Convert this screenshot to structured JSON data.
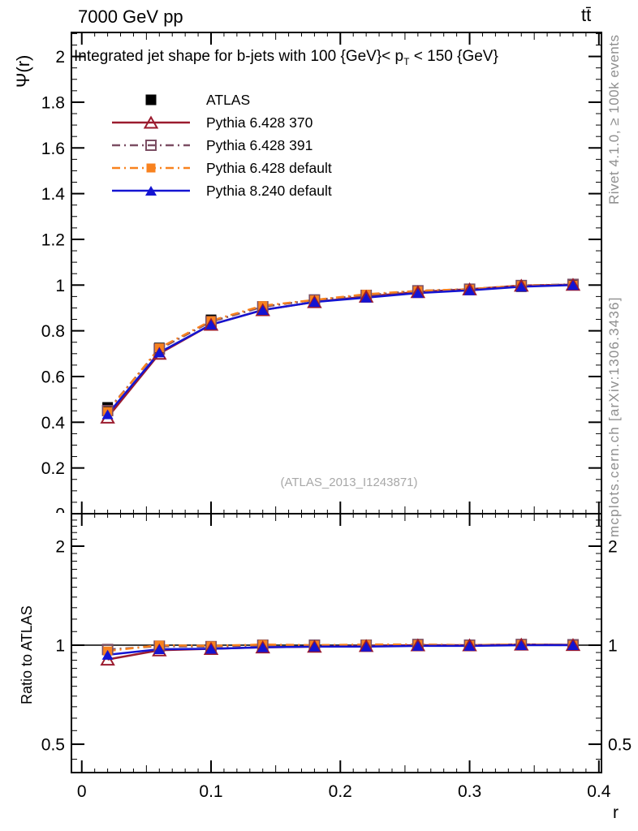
{
  "labels": {
    "header_left": "7000 GeV pp",
    "header_right": "tt̄",
    "title_pre": "Integrated jet shape for b-jets with 100 {GeV}< p",
    "title_sub": "T",
    "title_post": " < 150 {GeV}",
    "watermark": "(ATLAS_2013_I1243871)",
    "rivet": "Rivet 4.1.0, ≥ 100k events",
    "mcplots": "mcplots.cern.ch [arXiv:1306.3436]",
    "ylabel_main": "Ψ(r)",
    "ylabel_ratio": "Ratio to ATLAS",
    "xlabel": "r"
  },
  "chart_data": [
    {
      "type": "line",
      "panel": "main",
      "title": "Integrated jet shape for b-jets with 100 {GeV}< p_T < 150 {GeV}",
      "xlabel": "r",
      "ylabel": "Ψ(r)",
      "xlim": [
        -0.008,
        0.402
      ],
      "ylim": [
        0,
        2.105
      ],
      "yscale": "linear",
      "grid": false,
      "legend_position": "top-left",
      "xticks": [
        0,
        0.1,
        0.2,
        0.3,
        0.4
      ],
      "yticks": [
        0,
        0.2,
        0.4,
        0.6,
        0.8,
        1.0,
        1.2,
        1.4,
        1.6,
        1.8,
        2.0
      ],
      "x": [
        0.02,
        0.06,
        0.1,
        0.14,
        0.18,
        0.22,
        0.26,
        0.3,
        0.34,
        0.38
      ],
      "series": [
        {
          "name": "ATLAS",
          "color": "#000000",
          "marker": "square-filled",
          "line": "none",
          "values": [
            0.465,
            0.725,
            0.848,
            0.905,
            0.935,
            0.955,
            0.97,
            0.982,
            0.993,
            1.0
          ]
        },
        {
          "name": "Pythia 6.428 370",
          "color": "#9b1b2e",
          "marker": "triangle-open",
          "line": "solid",
          "values": [
            0.421,
            0.7,
            0.827,
            0.891,
            0.926,
            0.95,
            0.97,
            0.982,
            0.998,
            1.002
          ]
        },
        {
          "name": "Pythia 6.428 391",
          "color": "#7b4e63",
          "marker": "square-open",
          "line": "dashdot",
          "values": [
            0.451,
            0.72,
            0.84,
            0.905,
            0.935,
            0.955,
            0.975,
            0.982,
            0.998,
            1.003
          ]
        },
        {
          "name": "Pythia 6.428 default",
          "color": "#f8821f",
          "marker": "square-filled",
          "line": "dashdot",
          "values": [
            0.447,
            0.725,
            0.844,
            0.91,
            0.935,
            0.96,
            0.975,
            0.982,
            0.998,
            1.0
          ]
        },
        {
          "name": "Pythia 8.240 default",
          "color": "#1414d2",
          "marker": "triangle-filled",
          "line": "solid",
          "values": [
            0.435,
            0.705,
            0.827,
            0.891,
            0.926,
            0.945,
            0.965,
            0.977,
            0.993,
            1.0
          ]
        }
      ]
    },
    {
      "type": "line",
      "panel": "ratio",
      "title": "Ratio to ATLAS",
      "ylabel": "Ratio to ATLAS",
      "xlim": [
        -0.008,
        0.402
      ],
      "ylim": [
        0.41,
        2.51
      ],
      "yscale": "log",
      "grid": false,
      "reference_line": 1.0,
      "xticks": [
        0,
        0.1,
        0.2,
        0.3,
        0.4
      ],
      "yticks": [
        0.5,
        1,
        2
      ],
      "x": [
        0.02,
        0.06,
        0.1,
        0.14,
        0.18,
        0.22,
        0.26,
        0.3,
        0.34,
        0.38
      ],
      "series": [
        {
          "name": "Pythia 6.428 370",
          "color": "#9b1b2e",
          "marker": "triangle-open",
          "line": "solid",
          "values": [
            0.905,
            0.965,
            0.975,
            0.985,
            0.99,
            0.995,
            1.0,
            1.0,
            1.005,
            1.002
          ]
        },
        {
          "name": "Pythia 6.428 391",
          "color": "#7b4e63",
          "marker": "square-open",
          "line": "dashdot",
          "values": [
            0.97,
            0.993,
            0.99,
            1.0,
            1.0,
            1.0,
            1.005,
            1.0,
            1.005,
            1.003
          ]
        },
        {
          "name": "Pythia 6.428 default",
          "color": "#f8821f",
          "marker": "square-filled",
          "line": "dashdot",
          "values": [
            0.96,
            1.0,
            0.995,
            1.005,
            1.0,
            1.005,
            1.005,
            1.0,
            1.005,
            1.0
          ]
        },
        {
          "name": "Pythia 8.240 default",
          "color": "#1414d2",
          "marker": "triangle-filled",
          "line": "solid",
          "values": [
            0.935,
            0.972,
            0.975,
            0.985,
            0.99,
            0.99,
            0.995,
            0.995,
            1.0,
            1.0
          ]
        }
      ]
    }
  ]
}
